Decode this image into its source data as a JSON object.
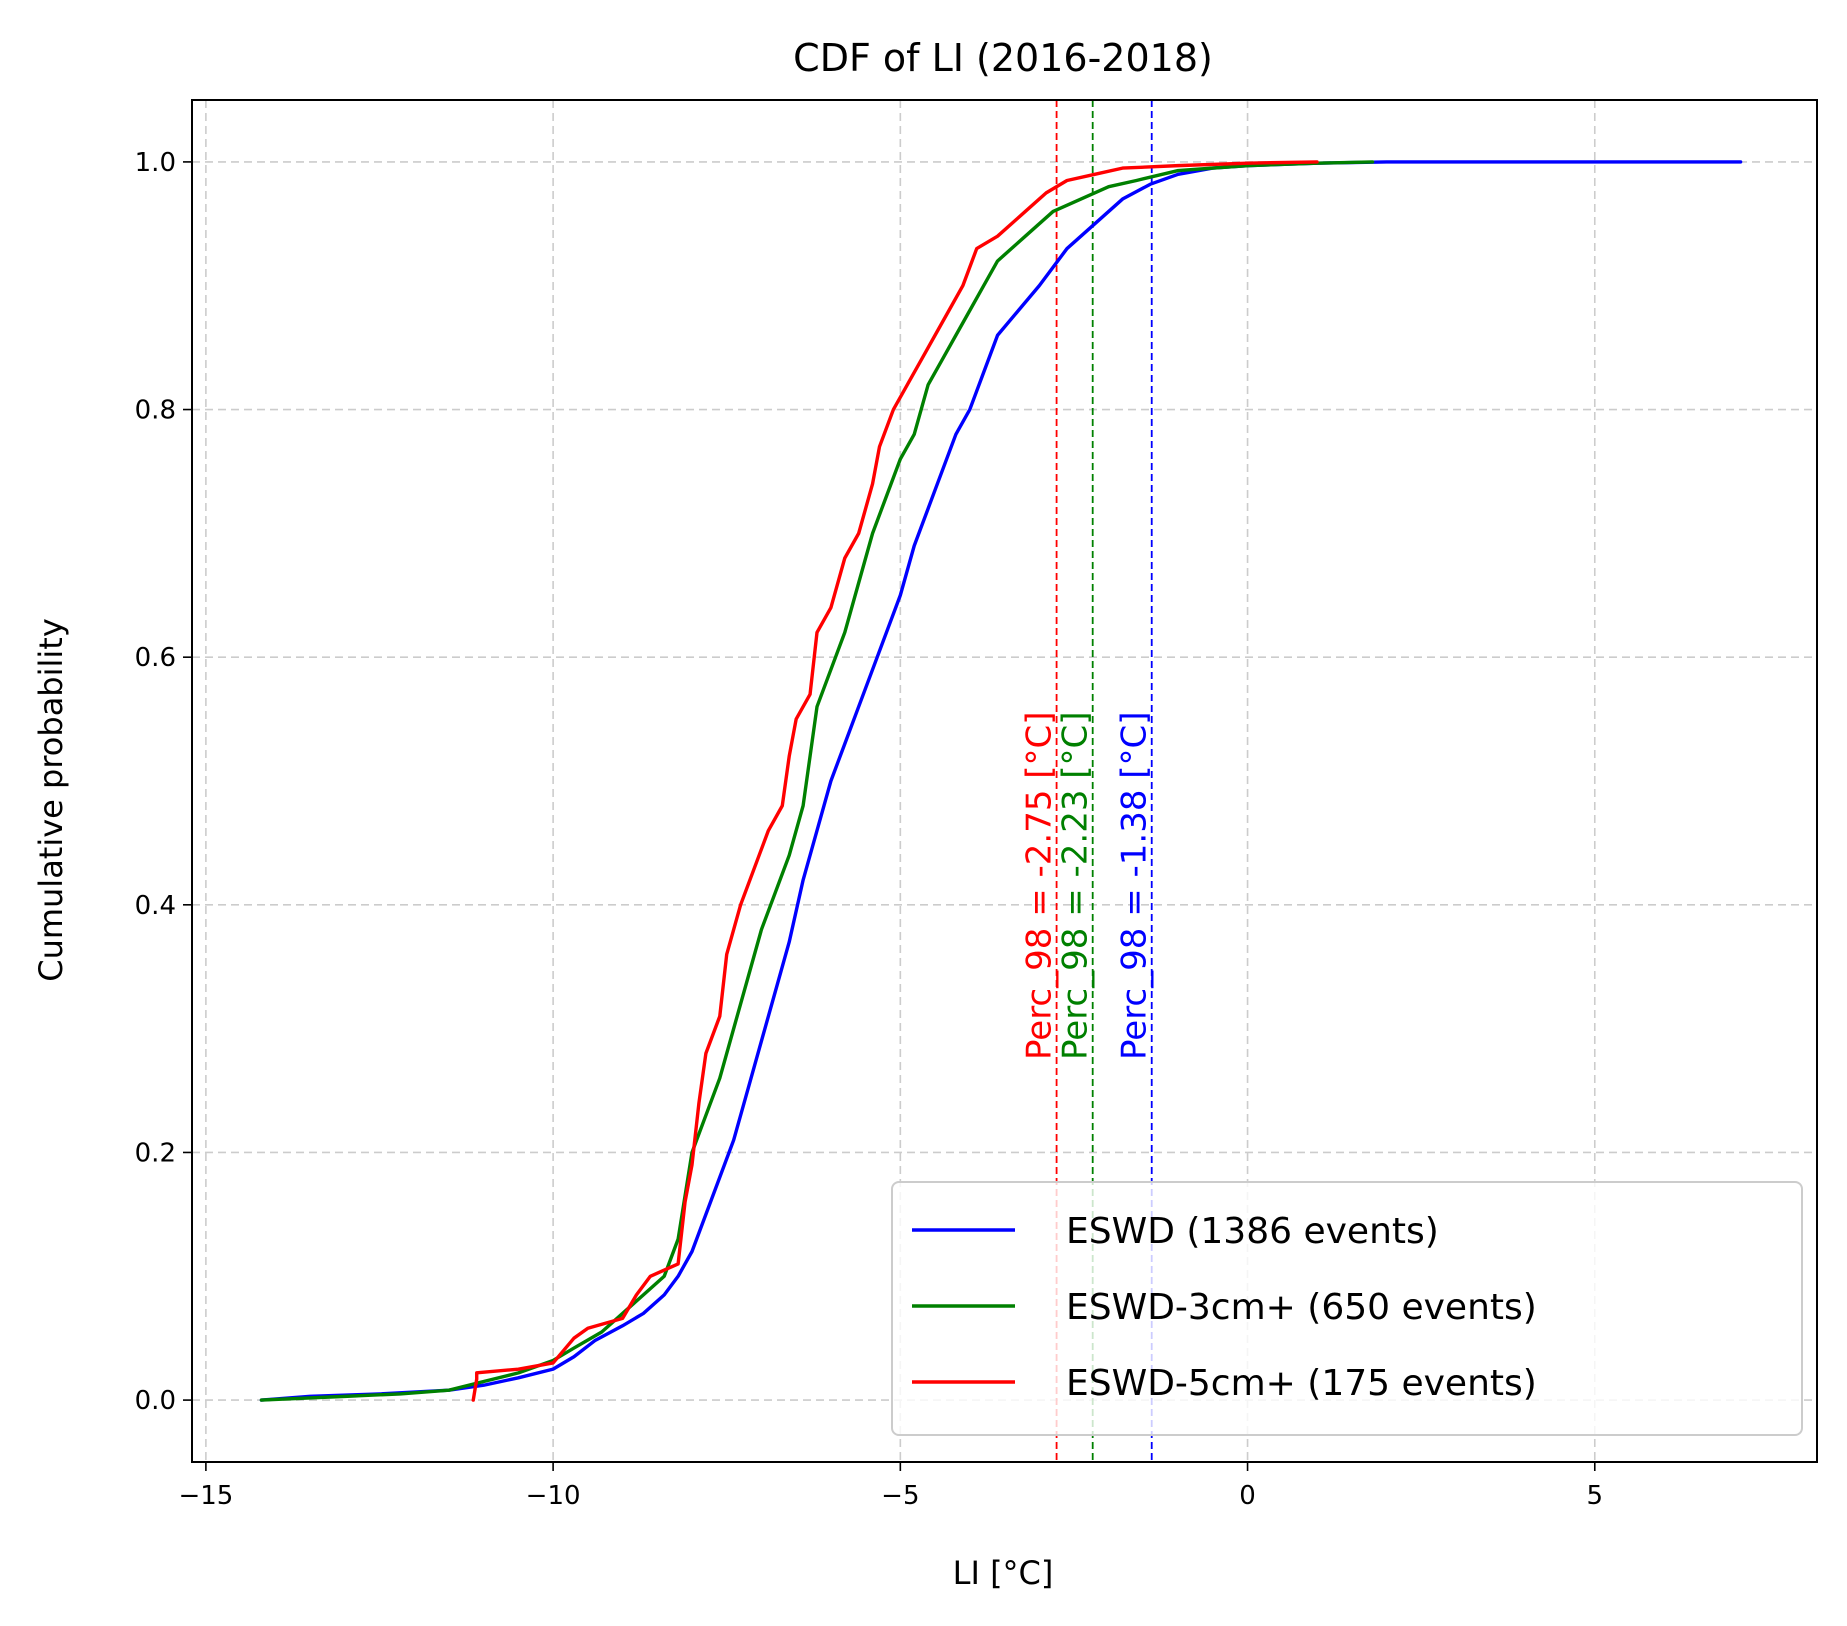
{
  "chart_data": {
    "type": "line",
    "title": "CDF of LI (2016-2018)",
    "xlabel": "LI [°C]",
    "ylabel": "Cumulative probability",
    "xlim": [
      -15.2,
      8.2
    ],
    "ylim": [
      -0.05,
      1.05
    ],
    "grid": true,
    "legend_position": "lower right",
    "x_ticks": [
      {
        "value": -15,
        "label": "−15"
      },
      {
        "value": -10,
        "label": "−10"
      },
      {
        "value": -5,
        "label": "−5"
      },
      {
        "value": 0,
        "label": "0"
      },
      {
        "value": 5,
        "label": "5"
      }
    ],
    "y_ticks": [
      {
        "value": 0.0,
        "label": "0.0"
      },
      {
        "value": 0.2,
        "label": "0.2"
      },
      {
        "value": 0.4,
        "label": "0.4"
      },
      {
        "value": 0.6,
        "label": "0.6"
      },
      {
        "value": 0.8,
        "label": "0.8"
      },
      {
        "value": 1.0,
        "label": "1.0"
      }
    ],
    "series": [
      {
        "name": "ESWD (1386 events)",
        "color": "#0000ff",
        "points": [
          [
            -14.2,
            0.0
          ],
          [
            -13.5,
            0.003
          ],
          [
            -12.5,
            0.005
          ],
          [
            -11.5,
            0.008
          ],
          [
            -11.0,
            0.012
          ],
          [
            -10.5,
            0.018
          ],
          [
            -10.0,
            0.025
          ],
          [
            -9.7,
            0.035
          ],
          [
            -9.4,
            0.048
          ],
          [
            -9.0,
            0.06
          ],
          [
            -8.7,
            0.07
          ],
          [
            -8.4,
            0.085
          ],
          [
            -8.2,
            0.1
          ],
          [
            -8.0,
            0.12
          ],
          [
            -7.8,
            0.15
          ],
          [
            -7.6,
            0.18
          ],
          [
            -7.4,
            0.21
          ],
          [
            -7.2,
            0.25
          ],
          [
            -7.0,
            0.29
          ],
          [
            -6.8,
            0.33
          ],
          [
            -6.6,
            0.37
          ],
          [
            -6.4,
            0.42
          ],
          [
            -6.2,
            0.46
          ],
          [
            -6.0,
            0.5
          ],
          [
            -5.8,
            0.53
          ],
          [
            -5.6,
            0.56
          ],
          [
            -5.4,
            0.59
          ],
          [
            -5.2,
            0.62
          ],
          [
            -5.0,
            0.65
          ],
          [
            -4.8,
            0.69
          ],
          [
            -4.6,
            0.72
          ],
          [
            -4.4,
            0.75
          ],
          [
            -4.2,
            0.78
          ],
          [
            -4.0,
            0.8
          ],
          [
            -3.8,
            0.83
          ],
          [
            -3.6,
            0.86
          ],
          [
            -3.3,
            0.88
          ],
          [
            -3.0,
            0.9
          ],
          [
            -2.6,
            0.93
          ],
          [
            -2.2,
            0.95
          ],
          [
            -1.8,
            0.97
          ],
          [
            -1.4,
            0.982
          ],
          [
            -1.0,
            0.99
          ],
          [
            -0.5,
            0.995
          ],
          [
            0.0,
            0.997
          ],
          [
            1.0,
            0.999
          ],
          [
            2.0,
            1.0
          ],
          [
            7.1,
            1.0
          ]
        ]
      },
      {
        "name": "ESWD-3cm+ (650 events)",
        "color": "#008000",
        "points": [
          [
            -14.2,
            0.0
          ],
          [
            -13.0,
            0.003
          ],
          [
            -12.2,
            0.005
          ],
          [
            -11.5,
            0.008
          ],
          [
            -11.0,
            0.015
          ],
          [
            -10.5,
            0.022
          ],
          [
            -10.0,
            0.032
          ],
          [
            -9.7,
            0.042
          ],
          [
            -9.3,
            0.055
          ],
          [
            -9.0,
            0.07
          ],
          [
            -8.7,
            0.085
          ],
          [
            -8.4,
            0.1
          ],
          [
            -8.2,
            0.13
          ],
          [
            -8.0,
            0.2
          ],
          [
            -7.8,
            0.23
          ],
          [
            -7.6,
            0.26
          ],
          [
            -7.4,
            0.3
          ],
          [
            -7.2,
            0.34
          ],
          [
            -7.0,
            0.38
          ],
          [
            -6.8,
            0.41
          ],
          [
            -6.6,
            0.44
          ],
          [
            -6.4,
            0.48
          ],
          [
            -6.3,
            0.52
          ],
          [
            -6.2,
            0.56
          ],
          [
            -6.0,
            0.59
          ],
          [
            -5.8,
            0.62
          ],
          [
            -5.6,
            0.66
          ],
          [
            -5.4,
            0.7
          ],
          [
            -5.2,
            0.73
          ],
          [
            -5.0,
            0.76
          ],
          [
            -4.8,
            0.78
          ],
          [
            -4.6,
            0.82
          ],
          [
            -4.4,
            0.84
          ],
          [
            -4.2,
            0.86
          ],
          [
            -4.0,
            0.88
          ],
          [
            -3.8,
            0.9
          ],
          [
            -3.6,
            0.92
          ],
          [
            -3.2,
            0.94
          ],
          [
            -2.8,
            0.96
          ],
          [
            -2.4,
            0.97
          ],
          [
            -2.0,
            0.98
          ],
          [
            -1.6,
            0.985
          ],
          [
            -1.0,
            0.993
          ],
          [
            0.0,
            0.997
          ],
          [
            1.0,
            0.999
          ],
          [
            1.8,
            1.0
          ]
        ]
      },
      {
        "name": "ESWD-5cm+ (175 events)",
        "color": "#ff0000",
        "points": [
          [
            -11.15,
            0.0
          ],
          [
            -11.1,
            0.017
          ],
          [
            -11.1,
            0.022
          ],
          [
            -10.5,
            0.025
          ],
          [
            -10.0,
            0.03
          ],
          [
            -9.7,
            0.05
          ],
          [
            -9.5,
            0.058
          ],
          [
            -9.0,
            0.066
          ],
          [
            -8.8,
            0.085
          ],
          [
            -8.6,
            0.1
          ],
          [
            -8.2,
            0.11
          ],
          [
            -8.1,
            0.16
          ],
          [
            -8.0,
            0.19
          ],
          [
            -7.9,
            0.24
          ],
          [
            -7.8,
            0.28
          ],
          [
            -7.6,
            0.31
          ],
          [
            -7.5,
            0.36
          ],
          [
            -7.3,
            0.4
          ],
          [
            -7.1,
            0.43
          ],
          [
            -6.9,
            0.46
          ],
          [
            -6.7,
            0.48
          ],
          [
            -6.6,
            0.52
          ],
          [
            -6.5,
            0.55
          ],
          [
            -6.3,
            0.57
          ],
          [
            -6.2,
            0.62
          ],
          [
            -6.0,
            0.64
          ],
          [
            -5.8,
            0.68
          ],
          [
            -5.6,
            0.7
          ],
          [
            -5.4,
            0.74
          ],
          [
            -5.3,
            0.77
          ],
          [
            -5.1,
            0.8
          ],
          [
            -4.9,
            0.82
          ],
          [
            -4.7,
            0.84
          ],
          [
            -4.5,
            0.86
          ],
          [
            -4.3,
            0.88
          ],
          [
            -4.1,
            0.9
          ],
          [
            -3.9,
            0.93
          ],
          [
            -3.6,
            0.94
          ],
          [
            -3.2,
            0.96
          ],
          [
            -2.9,
            0.975
          ],
          [
            -2.6,
            0.985
          ],
          [
            -2.2,
            0.99
          ],
          [
            -1.8,
            0.995
          ],
          [
            -1.0,
            0.997
          ],
          [
            0.0,
            0.999
          ],
          [
            1.0,
            1.0
          ]
        ]
      }
    ],
    "vertical_lines": [
      {
        "x": -2.75,
        "color": "#ff0000",
        "label": "Perc_98 = -2.75 [°C]"
      },
      {
        "x": -2.23,
        "color": "#008000",
        "label": "Perc_98 = -2.23 [°C]"
      },
      {
        "x": -1.38,
        "color": "#0000ff",
        "label": "Perc_98 = -1.38 [°C]"
      }
    ]
  }
}
